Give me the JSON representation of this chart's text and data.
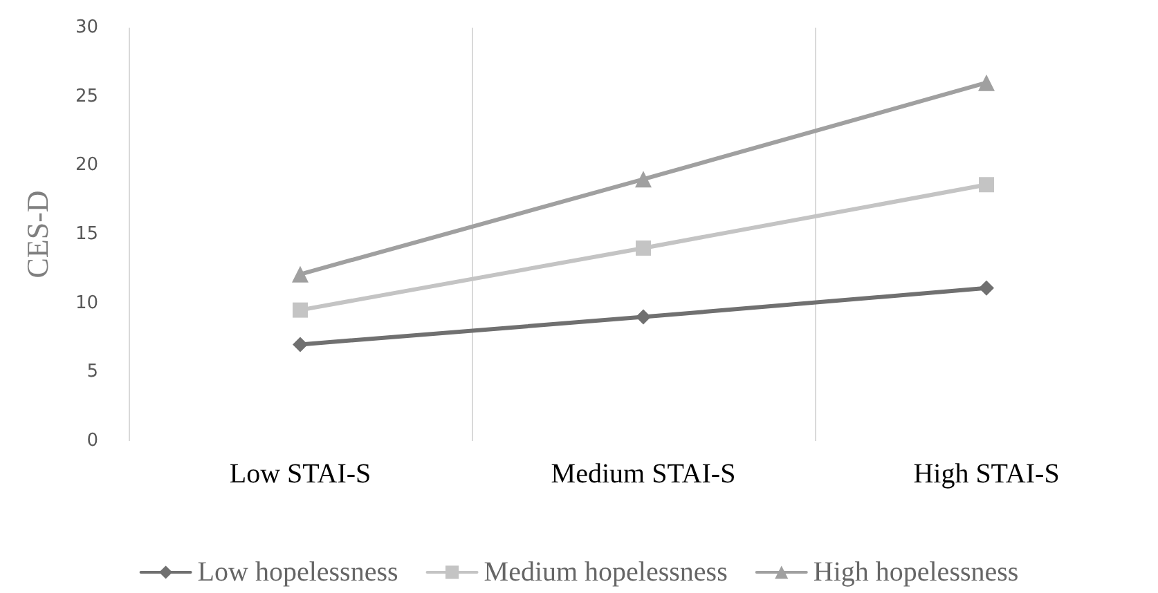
{
  "chart_data": {
    "type": "line",
    "ylabel": "CES-D",
    "categories": [
      "Low STAI-S",
      "Medium STAI-S",
      "High STAI-S"
    ],
    "series": [
      {
        "name": "Low hopelessness",
        "color": "#707070",
        "marker": "diamond",
        "values": [
          7.0,
          9.0,
          11.1
        ]
      },
      {
        "name": "Medium hopelessness",
        "color": "#c4c4c4",
        "marker": "square",
        "values": [
          9.5,
          14.0,
          18.6
        ]
      },
      {
        "name": "High hopelessness",
        "color": "#a0a0a0",
        "marker": "triangle",
        "values": [
          12.1,
          19.0,
          26.0
        ]
      }
    ],
    "ylim": [
      0,
      30
    ],
    "yticks": [
      0,
      5,
      10,
      15,
      20,
      25,
      30
    ],
    "grid": "x",
    "legend": "bottom",
    "line_style": "solid"
  }
}
